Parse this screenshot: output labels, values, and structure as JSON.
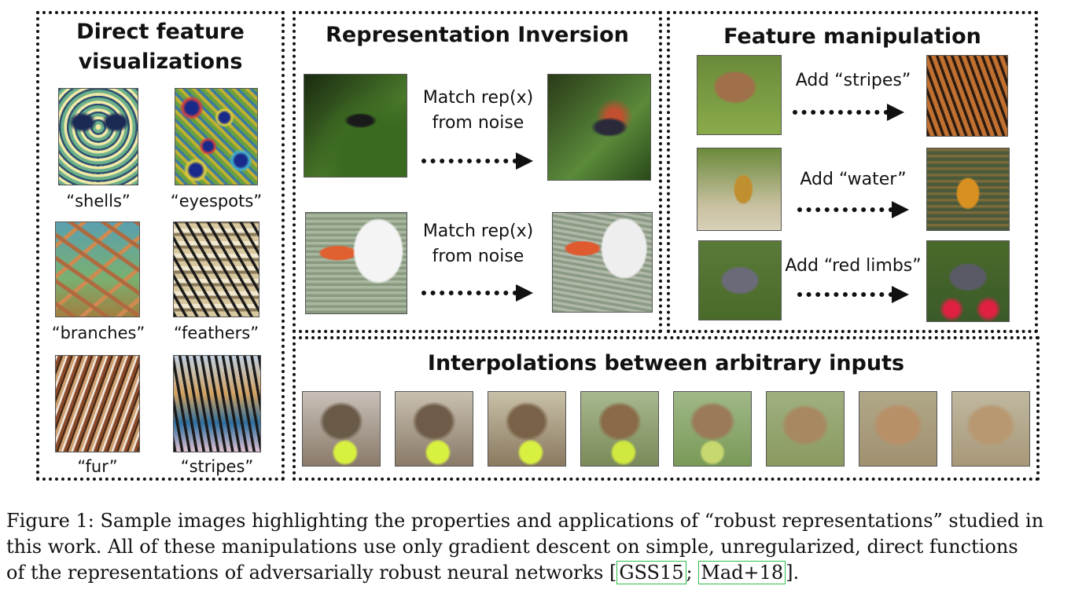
{
  "panels": {
    "direct": {
      "title_line1": "Direct feature",
      "title_line2": "visualizations",
      "captions": [
        "“shells”",
        "“eyespots”",
        "“branches”",
        "“feathers”",
        "“fur”",
        "“stripes”"
      ]
    },
    "inversion": {
      "title": "Representation Inversion",
      "rows": [
        {
          "line1": "Match rep(x)",
          "line2": "from noise"
        },
        {
          "line1": "Match rep(x)",
          "line2": "from noise"
        }
      ]
    },
    "manipulation": {
      "title": "Feature manipulation",
      "rows": [
        {
          "label": "Add “stripes”"
        },
        {
          "label": "Add “water”"
        },
        {
          "label": "Add “red limbs”"
        }
      ]
    },
    "interpolation": {
      "title": "Interpolations between arbitrary inputs",
      "frame_count": 8
    }
  },
  "figure_caption": {
    "line1": "Figure 1: Sample images highlighting the properties and applications of “robust representations” studied in",
    "line2": "this work. All of these manipulations use only gradient descent on simple, unregularized, direct functions",
    "line3_prefix": "of the representations of adversarially robust neural networks [",
    "cite1": "GSS15",
    "cite_sep": "; ",
    "cite2": "Mad+18",
    "line3_suffix": "]."
  },
  "colors": {
    "cite_box": "#2fbf4a",
    "border": "#111111"
  }
}
